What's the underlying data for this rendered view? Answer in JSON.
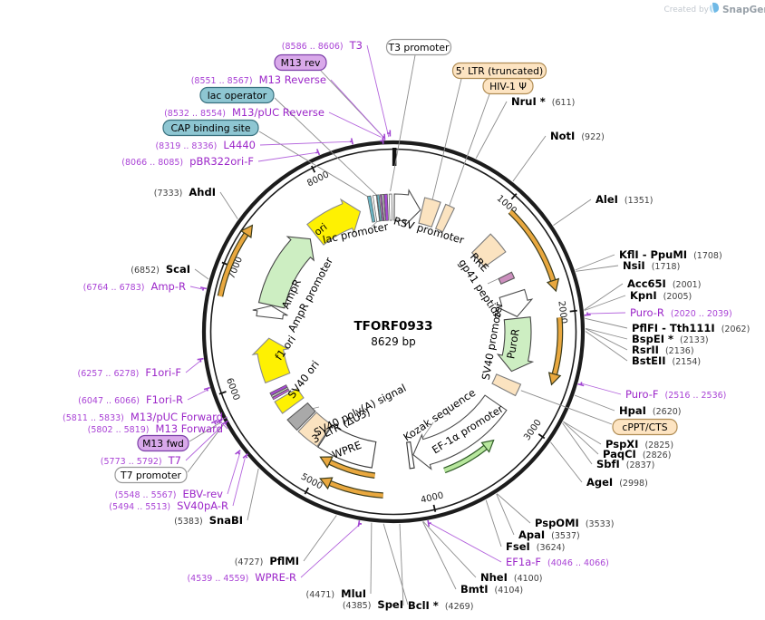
{
  "watermark": {
    "created_by": "Created by",
    "brand": "SnapGene"
  },
  "plasmid": {
    "name": "TFORF0933",
    "size_label": "8629 bp",
    "length_bp": 8629
  },
  "colors": {
    "ring": "#1c1c1c",
    "primer_purple": "#9c27c9",
    "leader_gray": "#8c8c8c",
    "leader_purple": "#b465dd",
    "tan_feature": "#fbe3c0",
    "green_cds": "#cdeec2",
    "yellow_feature": "#fef102",
    "gray_feature": "#a9a9a9",
    "teal_feature": "#69b3c2",
    "mauve_feature": "#cc8fbe",
    "orf_arrow_orange": "#e9a83f",
    "direction_green": "#b7e79d",
    "box_purple_fill": "#d9a9ea",
    "box_teal_fill": "#8ec6d2",
    "box_tan_fill": "#fde4c2",
    "box_white_fill": "#ffffff"
  },
  "ticks": [
    1000,
    2000,
    3000,
    4000,
    5000,
    6000,
    7000,
    8000
  ],
  "features": [
    {
      "id": "rsv-promoter",
      "name": "RSV promoter",
      "start": 10,
      "end": 300,
      "shape": "arrow",
      "fill": "#ffffff",
      "stroke": "#4d4d4d"
    },
    {
      "id": "5ltr",
      "name": "5' LTR (truncated)",
      "start": 315,
      "end": 480,
      "shape": "box",
      "fill": "#fbe3c0",
      "stroke": "#7d7d7d"
    },
    {
      "id": "psi",
      "name": "HIV-1 Ψ",
      "start": 535,
      "end": 630,
      "shape": "box",
      "fill": "#fbe3c0",
      "stroke": "#7d7d7d"
    },
    {
      "id": "rre",
      "name": "RRE",
      "start": 1075,
      "end": 1308,
      "shape": "box",
      "fill": "#fbe3c0",
      "stroke": "#7d7d7d"
    },
    {
      "id": "gp41",
      "name": "gp41 peptide",
      "start": 1516,
      "end": 1584,
      "shape": "box",
      "fill": "#cc8fbe",
      "stroke": "#5a5a5a",
      "rin": 130,
      "rout": 146
    },
    {
      "id": "sv40-promoter",
      "name": "SV40 promoter",
      "start": 1730,
      "end": 1990,
      "shape": "arrow",
      "fill": "#ffffff",
      "stroke": "#4d4d4d"
    },
    {
      "id": "puroR",
      "name": "PuroR",
      "start": 2010,
      "end": 2600,
      "shape": "arrow",
      "fill": "#cdeec2",
      "stroke": "#464646"
    },
    {
      "id": "cppt",
      "name": "cPPT/CTS",
      "start": 2695,
      "end": 2820,
      "shape": "box",
      "fill": "#fbe3c0",
      "stroke": "#7d7d7d"
    },
    {
      "id": "ef1a-promoter",
      "name": "EF-1α promoter",
      "start": 2990,
      "end": 4095,
      "shape": "arrow",
      "fill": "#ffffff",
      "stroke": "#4d4d4d"
    },
    {
      "id": "kozak",
      "name": "Kozak sequence",
      "start": 4105,
      "end": 4150,
      "shape": "box",
      "fill": "#ffffff",
      "stroke": "#333333"
    },
    {
      "id": "wpre",
      "name": "WPRE",
      "start": 4530,
      "end": 5110,
      "shape": "box",
      "fill": "#ffffff",
      "stroke": "#3a3a3a"
    },
    {
      "id": "3ltr",
      "name": "3' LTR (ΔU3)",
      "start": 5120,
      "end": 5360,
      "shape": "box",
      "fill": "#fbe3c0",
      "stroke": "#7d7d7d"
    },
    {
      "id": "sv40-polya",
      "name": "SV40 poly(A) signal",
      "start": 5380,
      "end": 5520,
      "shape": "box",
      "fill": "#a9a9a9",
      "stroke": "#5a5a5a"
    },
    {
      "id": "sv40-ori",
      "name": "SV40 ori",
      "start": 5600,
      "end": 5740,
      "shape": "box",
      "fill": "#fef102",
      "stroke": "#8a8a8a"
    },
    {
      "id": "t7-m13fwd-site-1",
      "name": "T7 / M13 fwd primer sites",
      "start": 5765,
      "end": 5786,
      "shape": "bar",
      "fill": "#c45ae0",
      "rin": 132
    },
    {
      "id": "t7-m13fwd-site-2",
      "name": "",
      "start": 5792,
      "end": 5806,
      "shape": "bar",
      "fill": "#ffffff",
      "rin": 132
    },
    {
      "id": "t7-m13fwd-site-3",
      "name": "",
      "start": 5812,
      "end": 5840,
      "shape": "bar",
      "fill": "#a64ad2",
      "rin": 132
    },
    {
      "id": "f1-ori",
      "name": "f1 ori",
      "start": 5950,
      "end": 6400,
      "shape": "arrow",
      "fill": "#fef102",
      "stroke": "#8a8a8a"
    },
    {
      "id": "ampr-promoter",
      "name": "AmpR promoter",
      "start": 6630,
      "end": 6760,
      "shape": "arrow",
      "fill": "#ffffff",
      "stroke": "#4d4d4d"
    },
    {
      "id": "ampR",
      "name": "AmpR",
      "start": 6766,
      "end": 7626,
      "shape": "arrow",
      "fill": "#cdeec2",
      "stroke": "#464646"
    },
    {
      "id": "ori",
      "name": "ori",
      "start": 7700,
      "end": 8260,
      "shape": "arrow",
      "fill": "#fef102",
      "stroke": "#8a8a8a"
    },
    {
      "id": "cap-binding-site-f",
      "name": "CAP binding site",
      "start": 8368,
      "end": 8402,
      "shape": "bar",
      "fill": "#69b3c2"
    },
    {
      "id": "lac-promoter",
      "name": "lac promoter",
      "start": 8424,
      "end": 8458,
      "shape": "bar",
      "fill": "#ffffff"
    },
    {
      "id": "lac-operator-f",
      "name": "lac operator",
      "start": 8464,
      "end": 8486,
      "shape": "bar",
      "fill": "#69b3c2"
    },
    {
      "id": "m13-site-1",
      "name": "M13 rev primer sites",
      "start": 8496,
      "end": 8510,
      "shape": "bar",
      "fill": "#c45ae0"
    },
    {
      "id": "m13-site-2",
      "name": "",
      "start": 8516,
      "end": 8530,
      "shape": "bar",
      "fill": "#ffffff"
    },
    {
      "id": "m13-site-3",
      "name": "",
      "start": 8536,
      "end": 8568,
      "shape": "bar",
      "fill": "#a64ad2"
    },
    {
      "id": "t3-promoter-f",
      "name": "T3 promoter",
      "start": 8586,
      "end": 8612,
      "shape": "bar",
      "fill": "#ffffff"
    }
  ],
  "direction_arrows": [
    {
      "id": "orf-left",
      "start": 6750,
      "end": 7360,
      "head": "end",
      "style": "orange"
    },
    {
      "id": "orf-right-1",
      "start": 1060,
      "end": 1820,
      "head": "end",
      "style": "orange"
    },
    {
      "id": "orf-right-2",
      "start": 2040,
      "end": 2600,
      "head": "end",
      "style": "orange"
    },
    {
      "id": "orf-bottom-outer",
      "start": 4400,
      "end": 4950,
      "head": "end",
      "style": "orange"
    },
    {
      "id": "orf-bottom-inner",
      "start": 4490,
      "end": 5040,
      "head": "end",
      "style": "orange"
    },
    {
      "id": "ef1a-direction",
      "start": 3290,
      "end": 3830,
      "head": "start",
      "style": "green"
    }
  ],
  "primer_sites": [
    {
      "name": "T3",
      "start": 8586,
      "end": 8606
    },
    {
      "name": "M13 Reverse",
      "start": 8551,
      "end": 8567
    },
    {
      "name": "M13/pUC Reverse",
      "start": 8532,
      "end": 8554
    },
    {
      "name": "L4440",
      "start": 8319,
      "end": 8336
    },
    {
      "name": "pBR322ori-F",
      "start": 8066,
      "end": 8085
    },
    {
      "name": "Amp-R",
      "start": 6764,
      "end": 6783
    },
    {
      "name": "F1ori-F",
      "start": 6257,
      "end": 6278
    },
    {
      "name": "F1ori-R",
      "start": 6047,
      "end": 6066
    },
    {
      "name": "M13/pUC Forward",
      "start": 5811,
      "end": 5833
    },
    {
      "name": "M13 Forward",
      "start": 5802,
      "end": 5819
    },
    {
      "name": "T7",
      "start": 5773,
      "end": 5792
    },
    {
      "name": "EBV-rev",
      "start": 5548,
      "end": 5567
    },
    {
      "name": "SV40pA-R",
      "start": 5494,
      "end": 5513
    },
    {
      "name": "WPRE-R",
      "start": 4539,
      "end": 4559
    },
    {
      "name": "EF1a-F",
      "start": 4046,
      "end": 4066
    },
    {
      "name": "Puro-F",
      "start": 2516,
      "end": 2536
    },
    {
      "name": "Puro-R",
      "start": 2020,
      "end": 2039
    }
  ],
  "labels": [
    {
      "id": "t3",
      "coord": "(8586 .. 8606)",
      "name": "T3",
      "color": "purple",
      "bp": 8596
    },
    {
      "id": "m13-rev",
      "name": "M13 rev",
      "box": "purple",
      "bp": 8559
    },
    {
      "id": "m13-reverse",
      "coord": "(8551 .. 8567)",
      "name": "M13 Reverse",
      "color": "purple",
      "bp": 8559
    },
    {
      "id": "lac-operator",
      "name": "lac operator",
      "box": "teal",
      "bp": 8476
    },
    {
      "id": "m13-puc-reverse",
      "coord": "(8532 .. 8554)",
      "name": "M13/pUC Reverse",
      "color": "purple",
      "bp": 8543
    },
    {
      "id": "cap-binding-site",
      "name": "CAP binding site",
      "box": "teal",
      "bp": 8390
    },
    {
      "id": "l4440",
      "coord": "(8319 .. 8336)",
      "name": "L4440",
      "color": "purple",
      "bp": 8327
    },
    {
      "id": "pbr322ori-f",
      "coord": "(8066 .. 8085)",
      "name": "pBR322ori-F",
      "color": "purple",
      "bp": 8075
    },
    {
      "id": "ahdi",
      "coord": "(7333)",
      "name": "AhdI",
      "color": "black",
      "bp": 7333
    },
    {
      "id": "scai",
      "coord": "(6852)",
      "name": "ScaI",
      "color": "black",
      "bp": 6852
    },
    {
      "id": "amp-r",
      "coord": "(6764 .. 6783)",
      "name": "Amp-R",
      "color": "purple",
      "bp": 6773
    },
    {
      "id": "f1ori-f",
      "coord": "(6257 .. 6278)",
      "name": "F1ori-F",
      "color": "purple",
      "bp": 6267
    },
    {
      "id": "f1ori-r",
      "coord": "(6047 .. 6066)",
      "name": "F1ori-R",
      "color": "purple",
      "bp": 6056
    },
    {
      "id": "m13-puc-forward",
      "coord": "(5811 .. 5833)",
      "name": "M13/pUC Forward",
      "color": "purple",
      "bp": 5822
    },
    {
      "id": "m13-forward",
      "coord": "(5802 .. 5819)",
      "name": "M13 Forward",
      "color": "purple",
      "bp": 5810
    },
    {
      "id": "m13-fwd",
      "name": "M13 fwd",
      "box": "purple",
      "bp": 5808
    },
    {
      "id": "t7",
      "coord": "(5773 .. 5792)",
      "name": "T7",
      "color": "purple",
      "bp": 5782
    },
    {
      "id": "t7-promoter",
      "name": "T7 promoter",
      "box": "white",
      "bp": 5784
    },
    {
      "id": "ebv-rev",
      "coord": "(5548 .. 5567)",
      "name": "EBV-rev",
      "color": "purple",
      "bp": 5557
    },
    {
      "id": "sv40pa-r",
      "coord": "(5494 .. 5513)",
      "name": "SV40pA-R",
      "color": "purple",
      "bp": 5503
    },
    {
      "id": "snabi",
      "coord": "(5383)",
      "name": "SnaBI",
      "color": "black",
      "bp": 5383
    },
    {
      "id": "pflmi",
      "coord": "(4727)",
      "name": "PflMI",
      "color": "black",
      "bp": 4727
    },
    {
      "id": "wpre-r",
      "coord": "(4539 .. 4559)",
      "name": "WPRE-R",
      "color": "purple",
      "bp": 4549
    },
    {
      "id": "mlui",
      "coord": "(4471)",
      "name": "MluI",
      "color": "black",
      "bp": 4471
    },
    {
      "id": "spei",
      "coord": "(4385)",
      "name": "SpeI",
      "color": "black",
      "bp": 4385
    },
    {
      "id": "bcli",
      "name": "BclI *",
      "coord": "(4269)",
      "color": "black",
      "bp": 4269,
      "name_first": true
    },
    {
      "id": "bmti",
      "name": "BmtI",
      "coord": "(4104)",
      "color": "black",
      "bp": 4104,
      "name_first": true
    },
    {
      "id": "nhei",
      "name": "NheI",
      "coord": "(4100)",
      "color": "black",
      "bp": 4100,
      "name_first": true
    },
    {
      "id": "ef1a-f",
      "name": "EF1a-F",
      "coord": "(4046 .. 4066)",
      "color": "purple",
      "bp": 4056,
      "name_first": true
    },
    {
      "id": "fsei",
      "name": "FseI",
      "coord": "(3624)",
      "color": "black",
      "bp": 3624,
      "name_first": true
    },
    {
      "id": "apai",
      "name": "ApaI",
      "coord": "(3537)",
      "color": "black",
      "bp": 3537,
      "name_first": true
    },
    {
      "id": "pspomi",
      "name": "PspOMI",
      "coord": "(3533)",
      "color": "black",
      "bp": 3533,
      "name_first": true
    },
    {
      "id": "agei",
      "name": "AgeI",
      "coord": "(2998)",
      "color": "black",
      "bp": 2998,
      "name_first": true
    },
    {
      "id": "sbfi",
      "name": "SbfI",
      "coord": "(2837)",
      "color": "black",
      "bp": 2837,
      "name_first": true
    },
    {
      "id": "paqci",
      "name": "PaqCI",
      "coord": "(2826)",
      "color": "black",
      "bp": 2826,
      "name_first": true
    },
    {
      "id": "pspxi",
      "name": "PspXI",
      "coord": "(2825)",
      "color": "black",
      "bp": 2825,
      "name_first": true
    },
    {
      "id": "cppt-cts-label",
      "name": "cPPT/CTS",
      "box": "tan",
      "bp": 2750
    },
    {
      "id": "hpai",
      "name": "HpaI",
      "coord": "(2620)",
      "color": "black",
      "bp": 2620,
      "name_first": true
    },
    {
      "id": "puro-f",
      "name": "Puro-F",
      "coord": "(2516 .. 2536)",
      "color": "purple",
      "bp": 2526,
      "name_first": true
    },
    {
      "id": "bsteii",
      "name": "BstEII",
      "coord": "(2154)",
      "color": "black",
      "bp": 2154,
      "name_first": true
    },
    {
      "id": "rsrii",
      "name": "RsrII",
      "coord": "(2136)",
      "color": "black",
      "bp": 2136,
      "name_first": true
    },
    {
      "id": "bspei",
      "name": "BspEI *",
      "coord": "(2133)",
      "color": "black",
      "bp": 2133,
      "name_first": true
    },
    {
      "id": "pflfi",
      "name": "PflFI - Tth111I",
      "coord": "(2062)",
      "color": "black",
      "bp": 2062,
      "name_first": true
    },
    {
      "id": "puro-r",
      "name": "Puro-R",
      "coord": "(2020 .. 2039)",
      "color": "purple",
      "bp": 2030,
      "name_first": true
    },
    {
      "id": "kpni",
      "name": "KpnI",
      "coord": "(2005)",
      "color": "black",
      "bp": 2005,
      "name_first": true
    },
    {
      "id": "acc65i",
      "name": "Acc65I",
      "coord": "(2001)",
      "color": "black",
      "bp": 2001,
      "name_first": true
    },
    {
      "id": "nsii",
      "name": "NsiI",
      "coord": "(1718)",
      "color": "black",
      "bp": 1718,
      "name_first": true
    },
    {
      "id": "kfli",
      "name": "KflI - PpuMI",
      "coord": "(1708)",
      "color": "black",
      "bp": 1708,
      "name_first": true
    },
    {
      "id": "alei",
      "name": "AleI",
      "coord": "(1351)",
      "color": "black",
      "bp": 1351,
      "name_first": true
    },
    {
      "id": "noti",
      "name": "NotI",
      "coord": "(922)",
      "color": "black",
      "bp": 922,
      "name_first": true
    },
    {
      "id": "nrui",
      "name": "NruI *",
      "coord": "(611)",
      "color": "black",
      "bp": 611,
      "name_first": true
    },
    {
      "id": "hiv1-psi",
      "name": "HIV-1 Ψ",
      "box": "tan",
      "bp": 575
    },
    {
      "id": "5ltr-label",
      "name": "5' LTR (truncated)",
      "box": "tan",
      "bp": 395
    },
    {
      "id": "t3-promoter",
      "name": "T3 promoter",
      "box": "white",
      "bp": 8599
    }
  ]
}
